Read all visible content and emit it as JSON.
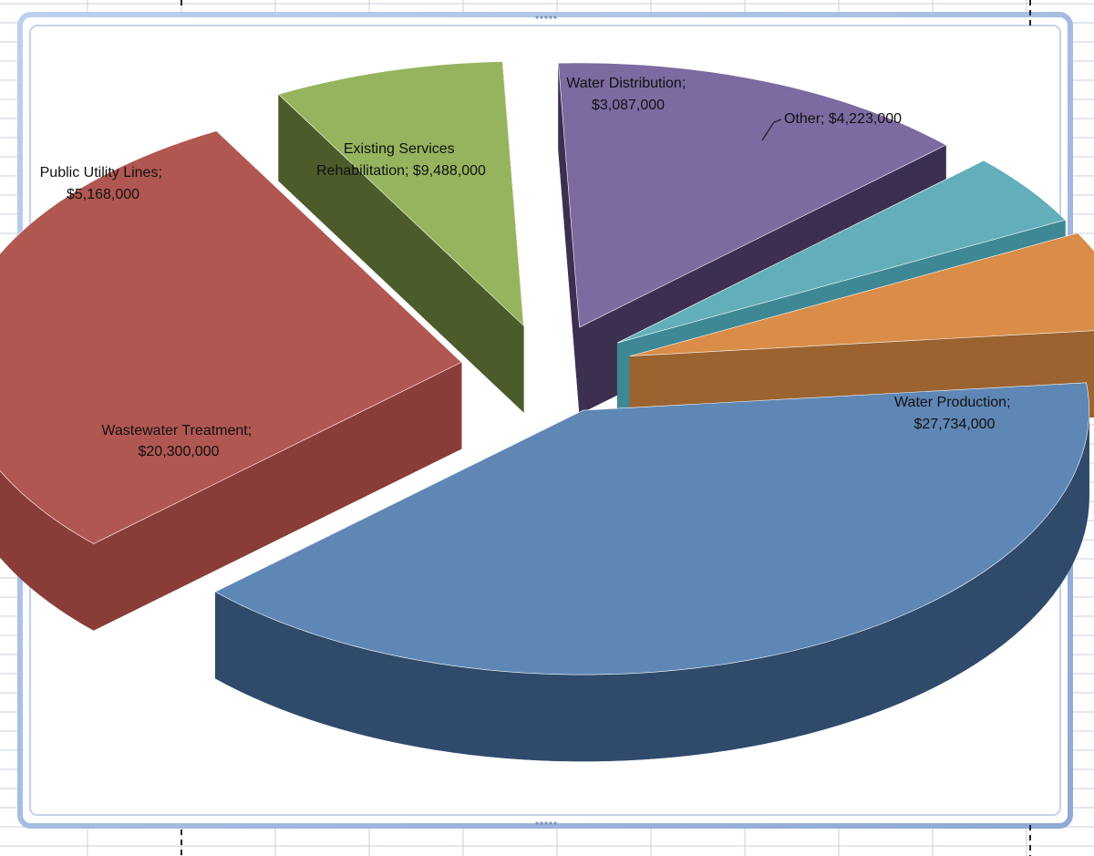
{
  "chart_data": {
    "type": "pie",
    "style": "3d-exploded",
    "title": "",
    "categories": [
      "Water Production",
      "Wastewater Treatment",
      "Public Utility Lines",
      "Existing Services Rehabilitation",
      "Water Distribution",
      "Other"
    ],
    "values": [
      27734000,
      20300000,
      5168000,
      9488000,
      3087000,
      4223000
    ],
    "labels": [
      [
        "Water Production;",
        "$27,734,000"
      ],
      [
        "Wastewater Treatment;",
        "$20,300,000"
      ],
      [
        "Public Utility Lines;",
        "$5,168,000"
      ],
      [
        "Existing Services",
        "Rehabilitation;  $9,488,000"
      ],
      [
        "Water Distribution;",
        "$3,087,000"
      ],
      [
        "Other;  $4,223,000"
      ]
    ],
    "colors": {
      "top": [
        "#5f87b5",
        "#b15751",
        "#96b45e",
        "#7d6aa0",
        "#63aebb",
        "#d98d48"
      ],
      "side": [
        "#2f4a6b",
        "#8a3c38",
        "#4b5c2a",
        "#3c2f50",
        "#3e8896",
        "#9b6330"
      ]
    },
    "legend": "none"
  },
  "ui": {
    "border_color": "#9bb3dc"
  }
}
